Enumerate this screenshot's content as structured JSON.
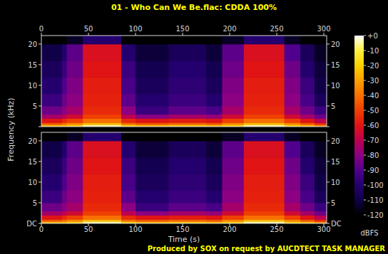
{
  "chart_data": {
    "type": "heatmap",
    "title": "01 - Who Can We Be.flac: CDDA 100%",
    "subtitle": "Produced by SOX on request by AUCDTECT TASK MANAGER",
    "x_label": "Time (s)",
    "y_label": "Frequency (kHz)",
    "xlim": [
      0,
      303
    ],
    "xticks": [
      0,
      50,
      100,
      150,
      200,
      250,
      300
    ],
    "ylim": [
      0,
      22.05
    ],
    "yticks": [
      {
        "value": 0,
        "label": "DC"
      },
      5,
      10,
      15,
      20
    ],
    "x_edges": [
      0,
      22,
      27,
      44,
      85,
      100,
      135,
      175,
      192,
      215,
      258,
      275,
      290,
      303
    ],
    "y_edges": [
      0,
      0.5,
      1,
      2,
      3,
      5,
      8,
      12,
      16,
      20,
      22.05
    ],
    "channels": [
      {
        "cells": [
          [
            -25,
            -45,
            -60,
            -75,
            -85,
            -95,
            -100,
            -105,
            -110,
            -120
          ],
          [
            -25,
            -40,
            -55,
            -70,
            -80,
            -85,
            -90,
            -95,
            -100,
            -120
          ],
          [
            -20,
            -35,
            -50,
            -65,
            -75,
            -80,
            -82,
            -85,
            -88,
            -115
          ],
          [
            -5,
            -25,
            -40,
            -50,
            -55,
            -57,
            -58,
            -60,
            -62,
            -100
          ],
          [
            -20,
            -40,
            -55,
            -70,
            -80,
            -88,
            -92,
            -95,
            -100,
            -120
          ],
          [
            -25,
            -45,
            -60,
            -80,
            -95,
            -100,
            -105,
            -108,
            -112,
            -120
          ],
          [
            -22,
            -42,
            -58,
            -75,
            -88,
            -95,
            -98,
            -100,
            -105,
            -120
          ],
          [
            -25,
            -45,
            -60,
            -78,
            -92,
            -100,
            -105,
            -108,
            -112,
            -120
          ],
          [
            -20,
            -35,
            -50,
            -65,
            -75,
            -80,
            -82,
            -85,
            -88,
            -115
          ],
          [
            -5,
            -25,
            -40,
            -50,
            -55,
            -57,
            -58,
            -60,
            -62,
            -100
          ],
          [
            -20,
            -35,
            -50,
            -65,
            -75,
            -80,
            -82,
            -85,
            -90,
            -115
          ],
          [
            -25,
            -45,
            -60,
            -75,
            -85,
            -92,
            -95,
            -100,
            -105,
            -120
          ],
          [
            -35,
            -55,
            -70,
            -85,
            -95,
            -105,
            -110,
            -112,
            -115,
            -120
          ]
        ]
      },
      {
        "cells": [
          [
            -25,
            -45,
            -60,
            -75,
            -85,
            -95,
            -100,
            -105,
            -110,
            -120
          ],
          [
            -25,
            -40,
            -55,
            -70,
            -80,
            -85,
            -90,
            -95,
            -100,
            -120
          ],
          [
            -20,
            -35,
            -50,
            -65,
            -75,
            -80,
            -82,
            -85,
            -88,
            -115
          ],
          [
            -5,
            -25,
            -40,
            -50,
            -55,
            -57,
            -58,
            -60,
            -62,
            -100
          ],
          [
            -20,
            -40,
            -55,
            -70,
            -80,
            -88,
            -92,
            -95,
            -100,
            -120
          ],
          [
            -25,
            -45,
            -60,
            -80,
            -95,
            -100,
            -105,
            -108,
            -112,
            -120
          ],
          [
            -22,
            -42,
            -58,
            -75,
            -88,
            -95,
            -98,
            -100,
            -105,
            -120
          ],
          [
            -25,
            -45,
            -60,
            -78,
            -92,
            -100,
            -105,
            -108,
            -112,
            -120
          ],
          [
            -20,
            -35,
            -50,
            -65,
            -75,
            -80,
            -82,
            -85,
            -88,
            -115
          ],
          [
            -5,
            -25,
            -40,
            -50,
            -55,
            -57,
            -58,
            -60,
            -62,
            -100
          ],
          [
            -20,
            -35,
            -50,
            -65,
            -75,
            -80,
            -82,
            -85,
            -90,
            -115
          ],
          [
            -25,
            -45,
            -60,
            -75,
            -85,
            -92,
            -95,
            -100,
            -105,
            -120
          ],
          [
            -35,
            -55,
            -70,
            -85,
            -95,
            -105,
            -110,
            -112,
            -115,
            -120
          ]
        ]
      }
    ],
    "colorbar": {
      "label": "dBFS",
      "range": [
        -120,
        0
      ],
      "ticks": [
        {
          "value": 0,
          "label": "+0"
        },
        -10,
        -20,
        -30,
        -40,
        -50,
        -60,
        -70,
        -80,
        -90,
        -100,
        -110,
        -120
      ]
    }
  }
}
